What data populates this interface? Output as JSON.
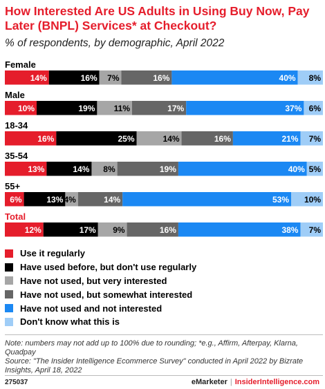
{
  "header": {
    "title": "How Interested Are US Adults in Using Buy Now, Pay Later (BNPL) Services* at Checkout?",
    "subtitle": "% of respondents, by demographic, April 2022"
  },
  "chart_data": {
    "type": "bar",
    "stacked": true,
    "orientation": "horizontal",
    "categories": [
      "Female",
      "Male",
      "18-34",
      "35-54",
      "55+",
      "Total"
    ],
    "series": [
      {
        "name": "Use it regularly",
        "color": "#e51d2b",
        "values": [
          14,
          10,
          16,
          13,
          6,
          12
        ]
      },
      {
        "name": "Have used before, but don't use regularly",
        "color": "#000000",
        "values": [
          16,
          19,
          25,
          14,
          13,
          17
        ]
      },
      {
        "name": "Have not used, but very interested",
        "color": "#a6a6a6",
        "values": [
          7,
          11,
          14,
          8,
          4,
          9
        ]
      },
      {
        "name": "Have not used, but somewhat interested",
        "color": "#666666",
        "values": [
          16,
          17,
          16,
          19,
          14,
          16
        ]
      },
      {
        "name": "Have not used and not interested",
        "color": "#1b88f3",
        "values": [
          40,
          37,
          21,
          40,
          53,
          38
        ]
      },
      {
        "name": "Don't know what this is",
        "color": "#9fcdf7",
        "values": [
          8,
          6,
          7,
          5,
          10,
          7
        ]
      }
    ],
    "highlight_category": "Total",
    "highlight_color": "#e51d2b",
    "legend_position": "bottom"
  },
  "notes": {
    "note": "Note: numbers may not add up to 100% due to rounding; *e.g., Affirm, Afterpay, Klarna, Quadpay",
    "source": "Source: \"The Insider Intelligence Ecommerce Survey\" conducted in April 2022 by Bizrate Insights, April 18, 2022"
  },
  "footer": {
    "chart_id": "275037",
    "brand_left": "eMarketer",
    "separator": "|",
    "brand_right": "InsiderIntelligence.com"
  }
}
